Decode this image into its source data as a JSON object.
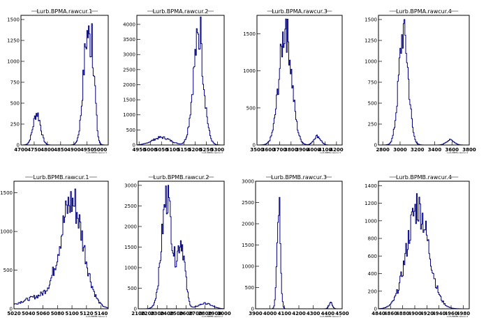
{
  "chart_data": [
    {
      "type": "bar",
      "title": "Lurb.BPMA.rawcur.1",
      "stat_label": "Lurb.BPMA.rawcur.1",
      "xlim": [
        4700,
        5030
      ],
      "ylim": [
        0,
        1550
      ],
      "xticks": [
        4700,
        4750,
        4800,
        4850,
        4900,
        4950,
        5000
      ],
      "xtick_labels": [
        "4700",
        "4750",
        "4800",
        "4850",
        "4900",
        "4950",
        "5000"
      ],
      "yticks": [
        0,
        250,
        500,
        750,
        1000,
        1250,
        1500
      ],
      "ytick_labels": [
        "0",
        "250",
        "500",
        "750",
        "1000",
        "1250",
        "1500"
      ],
      "peaks": [
        [
          4760,
          380,
          14
        ],
        [
          4952,
          1320,
          16
        ],
        [
          4975,
          500,
          8
        ]
      ],
      "spikes": [
        [
          4966,
          1450
        ]
      ]
    },
    {
      "type": "bar",
      "title": "Lurb.BPMA.rawcur.2",
      "stat_label": "Lurb.BPMA.rawcur.2",
      "xlim": [
        4940,
        5330
      ],
      "ylim": [
        0,
        4300
      ],
      "xticks": [
        4950,
        5000,
        5050,
        5100,
        5150,
        5200,
        5250,
        5300
      ],
      "xtick_labels": [
        "4950",
        "5000",
        "5050",
        "5100",
        "5150",
        "5200",
        "5250",
        "5300"
      ],
      "yticks": [
        0,
        500,
        1000,
        1500,
        2000,
        2500,
        3000,
        3500,
        4000
      ],
      "ytick_labels": [
        "0",
        "500",
        "1000",
        "1500",
        "2000",
        "2500",
        "3000",
        "3500",
        "4000"
      ],
      "peaks": [
        [
          5050,
          250,
          40
        ],
        [
          5215,
          3500,
          24
        ]
      ],
      "spikes": [
        [
          5222,
          4250
        ]
      ]
    },
    {
      "type": "bar",
      "title": "Lurb.BPMA.rawcur.3",
      "stat_label": "Lurb.BPMA.rawcur.3",
      "xlim": [
        3500,
        4250
      ],
      "ylim": [
        0,
        1750
      ],
      "xticks": [
        3500,
        3600,
        3700,
        3800,
        3900,
        4000,
        4100,
        4200
      ],
      "xtick_labels": [
        "3500",
        "3600",
        "3700",
        "3800",
        "3900",
        "4000",
        "4100",
        "4200"
      ],
      "yticks": [
        0,
        500,
        1000,
        1500
      ],
      "ytick_labels": [
        "0",
        "500",
        "1000",
        "1500"
      ],
      "peaks": [
        [
          3750,
          1550,
          55
        ],
        [
          4030,
          120,
          30
        ]
      ],
      "spikes": [
        [
          3755,
          1700
        ]
      ]
    },
    {
      "type": "bar",
      "title": "Lurb.BPMA.rawcur.4",
      "stat_label": "Lurb.BPMA.rawcur.4",
      "xlim": [
        2750,
        3800
      ],
      "ylim": [
        0,
        1550
      ],
      "xticks": [
        2800,
        3000,
        3200,
        3400,
        3600,
        3800
      ],
      "xtick_labels": [
        "2800",
        "3000",
        "3200",
        "3400",
        "3600",
        "3800"
      ],
      "yticks": [
        0,
        250,
        500,
        750,
        1000,
        1250,
        1500
      ],
      "ytick_labels": [
        "0",
        "250",
        "500",
        "750",
        "1000",
        "1250",
        "1500"
      ],
      "peaks": [
        [
          3040,
          1350,
          55
        ],
        [
          3580,
          60,
          45
        ]
      ],
      "spikes": [
        [
          3050,
          1500
        ]
      ]
    },
    {
      "type": "bar",
      "title": "Lurb.BPMB.rawcur.1",
      "stat_label": "Lurb.BPMB.rawcur.1",
      "xlim": [
        5020,
        5150
      ],
      "ylim": [
        0,
        1650
      ],
      "xticks": [
        5020,
        5040,
        5060,
        5080,
        5100,
        5120,
        5140
      ],
      "xtick_labels": [
        "5020",
        "5040",
        "5060",
        "5080",
        "5100",
        "5120",
        "5140"
      ],
      "yticks": [
        0,
        500,
        1000,
        1500
      ],
      "ytick_labels": [
        "0",
        "500",
        "1000",
        "1500"
      ],
      "peaks": [
        [
          5055,
          150,
          25
        ],
        [
          5100,
          1350,
          16
        ]
      ],
      "spikes": [
        [
          5104,
          1550
        ]
      ]
    },
    {
      "type": "bar",
      "title": "Lurb.BPMB.rawcur.2",
      "stat_label": "Lurb.BPMB.rawcur.2",
      "xlim": [
        2100,
        3000
      ],
      "ylim": [
        0,
        3100
      ],
      "xticks": [
        2100,
        2200,
        2300,
        2400,
        2500,
        2600,
        2700,
        2800,
        2900,
        3000
      ],
      "xtick_labels": [
        "2100",
        "2200",
        "2300",
        "2400",
        "2500",
        "2600",
        "2700",
        "2800",
        "2900",
        "3000"
      ],
      "yticks": [
        0,
        500,
        1000,
        1500,
        2000,
        2500,
        3000
      ],
      "ytick_labels": [
        "0",
        "500",
        "1000",
        "1500",
        "2000",
        "2500",
        "3000"
      ],
      "peaks": [
        [
          2400,
          2700,
          55
        ],
        [
          2550,
          1600,
          40
        ],
        [
          2800,
          130,
          70
        ]
      ],
      "spikes": [
        [
          2410,
          3000
        ]
      ]
    },
    {
      "type": "bar",
      "title": "Lurb.BPMB.rawcur.3",
      "stat_label": "Lurb.BPMB.rawcur.3",
      "xlim": [
        3900,
        4500
      ],
      "ylim": [
        0,
        3000
      ],
      "xticks": [
        3900,
        4000,
        4100,
        4200,
        4300,
        4400,
        4500
      ],
      "xtick_labels": [
        "3900",
        "4000",
        "4100",
        "4200",
        "4300",
        "4400",
        "4500"
      ],
      "yticks": [
        0,
        500,
        1000,
        1500,
        2000,
        2500,
        3000
      ],
      "ytick_labels": [
        "0",
        "500",
        "1000",
        "1500",
        "2000",
        "2500",
        "3000"
      ],
      "peaks": [
        [
          4060,
          2500,
          12
        ],
        [
          4420,
          140,
          12
        ]
      ],
      "spikes": [
        [
          4064,
          2620
        ]
      ]
    },
    {
      "type": "bar",
      "title": "Lurb.BPMB.rawcur.4",
      "stat_label": "Lurb.BPMB.rawcur.4",
      "xlim": [
        4840,
        4990
      ],
      "ylim": [
        0,
        1450
      ],
      "xticks": [
        4840,
        4860,
        4880,
        4900,
        4920,
        4940,
        4960,
        4980
      ],
      "xtick_labels": [
        "4840",
        "4860",
        "4880",
        "4900",
        "4920",
        "4940",
        "4960",
        "4980"
      ],
      "yticks": [
        0,
        200,
        400,
        600,
        800,
        1000,
        1200,
        1400
      ],
      "ytick_labels": [
        "0",
        "200",
        "400",
        "600",
        "800",
        "1000",
        "1200",
        "1400"
      ],
      "peaks": [
        [
          4905,
          1150,
          18
        ]
      ],
      "spikes": [
        [
          4903,
          1310
        ]
      ]
    }
  ]
}
